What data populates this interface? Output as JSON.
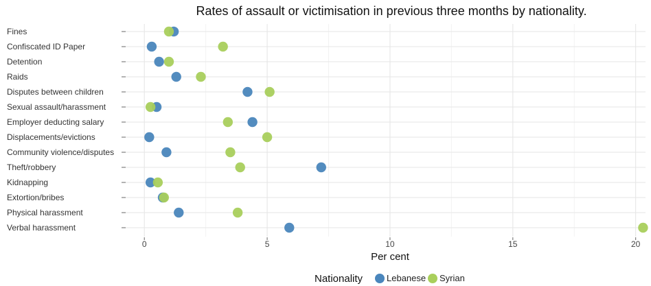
{
  "chart_data": {
    "type": "scatter",
    "title": "Rates of assault or victimisation in previous three months by nationality.",
    "xlabel": "Per cent",
    "ylabel": "",
    "xlim": [
      -0.9,
      20.4
    ],
    "xticks": [
      0,
      5,
      10,
      15,
      20
    ],
    "grid": true,
    "legend_title": "Nationality",
    "legend_position": "bottom",
    "categories": [
      "Fines",
      "Confiscated ID Paper",
      "Detention",
      "Raids",
      "Disputes between children",
      "Sexual assault/harassment",
      "Employer deducting salary",
      "Displacements/evictions",
      "Community violence/disputes",
      "Theft/robbery",
      "Kidnapping",
      "Extortion/bribes",
      "Physical harassment",
      "Verbal harassment"
    ],
    "series": [
      {
        "name": "Lebanese",
        "color": "#4a86bc",
        "values": [
          1.2,
          0.3,
          0.6,
          1.3,
          4.2,
          0.5,
          4.4,
          0.2,
          0.9,
          7.2,
          0.25,
          0.75,
          1.4,
          5.9
        ]
      },
      {
        "name": "Syrian",
        "color": "#a9cf5c",
        "values": [
          1.0,
          3.2,
          1.0,
          2.3,
          5.1,
          0.25,
          3.4,
          5.0,
          3.5,
          3.9,
          0.55,
          0.8,
          3.8,
          20.3
        ]
      }
    ]
  }
}
